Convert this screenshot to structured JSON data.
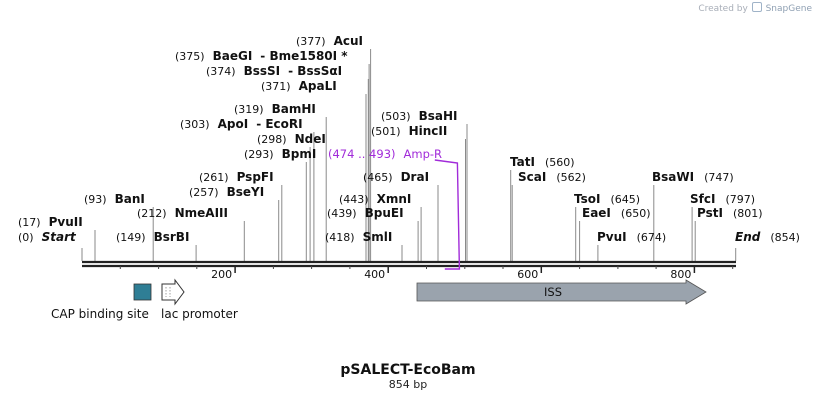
{
  "credit": {
    "prefix": "Created by",
    "brand": "SnapGene"
  },
  "plasmid": {
    "name": "pSALECT-EcoBam",
    "length_label": "854 bp",
    "length": 854
  },
  "ruler": {
    "ticks": [
      200,
      400,
      600,
      800
    ],
    "start_label": "Start",
    "end_label": "End"
  },
  "sites": [
    {
      "pos": 0,
      "pos_label": "(0)",
      "name": "Start",
      "italic": true
    },
    {
      "pos": 17,
      "pos_label": "(17)",
      "name": "PvuII"
    },
    {
      "pos": 93,
      "pos_label": "(93)",
      "name": "BanI"
    },
    {
      "pos": 149,
      "pos_label": "(149)",
      "name": "BsrBI"
    },
    {
      "pos": 212,
      "pos_label": "(212)",
      "name": "NmeAIII"
    },
    {
      "pos": 257,
      "pos_label": "(257)",
      "name": "BseYI"
    },
    {
      "pos": 261,
      "pos_label": "(261)",
      "name": "PspFI"
    },
    {
      "pos": 293,
      "pos_label": "(293)",
      "name": "BpmI"
    },
    {
      "pos": 298,
      "pos_label": "(298)",
      "name": "NdeI"
    },
    {
      "pos": 303,
      "pos_label": "(303)",
      "name": "ApoI",
      "extra": "- EcoRI"
    },
    {
      "pos": 319,
      "pos_label": "(319)",
      "name": "BamHI"
    },
    {
      "pos": 371,
      "pos_label": "(371)",
      "name": "ApaLI"
    },
    {
      "pos": 374,
      "pos_label": "(374)",
      "name": "BssSI",
      "extra": "- BssSαI"
    },
    {
      "pos": 375,
      "pos_label": "(375)",
      "name": "BaeGI",
      "extra": "- Bme1580I *"
    },
    {
      "pos": 377,
      "pos_label": "(377)",
      "name": "AcuI"
    },
    {
      "pos": 418,
      "pos_label": "(418)",
      "name": "SmlI"
    },
    {
      "pos": 439,
      "pos_label": "(439)",
      "name": "BpuEI"
    },
    {
      "pos": 443,
      "pos_label": "(443)",
      "name": "XmnI"
    },
    {
      "pos": 465,
      "pos_label": "(465)",
      "name": "DraI"
    },
    {
      "pos": 501,
      "pos_label": "(501)",
      "name": "HincII"
    },
    {
      "pos": 503,
      "pos_label": "(503)",
      "name": "BsaHI"
    },
    {
      "pos": 560,
      "pos_label": "(560)",
      "name": "TatI"
    },
    {
      "pos": 562,
      "pos_label": "(562)",
      "name": "ScaI"
    },
    {
      "pos": 645,
      "pos_label": "(645)",
      "name": "TsoI"
    },
    {
      "pos": 650,
      "pos_label": "(650)",
      "name": "EaeI"
    },
    {
      "pos": 674,
      "pos_label": "(674)",
      "name": "PvuI"
    },
    {
      "pos": 747,
      "pos_label": "(747)",
      "name": "BsaWI"
    },
    {
      "pos": 797,
      "pos_label": "(797)",
      "name": "SfcI"
    },
    {
      "pos": 801,
      "pos_label": "(801)",
      "name": "PstI"
    },
    {
      "pos": 854,
      "pos_label": "(854)",
      "name": "End",
      "italic": true
    }
  ],
  "primer": {
    "range_label": "(474 .. 493)",
    "name": "Amp-R",
    "start": 474,
    "end": 493,
    "color": "#a12bd9"
  },
  "features": [
    {
      "name": "ISS",
      "type": "arrow",
      "start": 436,
      "end": 819,
      "color": "#9aa3ad"
    },
    {
      "name": "CAP binding site",
      "type": "box",
      "color": "#2f7e95"
    },
    {
      "name": "lac promoter",
      "type": "promoter",
      "color": "#ffffff"
    }
  ]
}
